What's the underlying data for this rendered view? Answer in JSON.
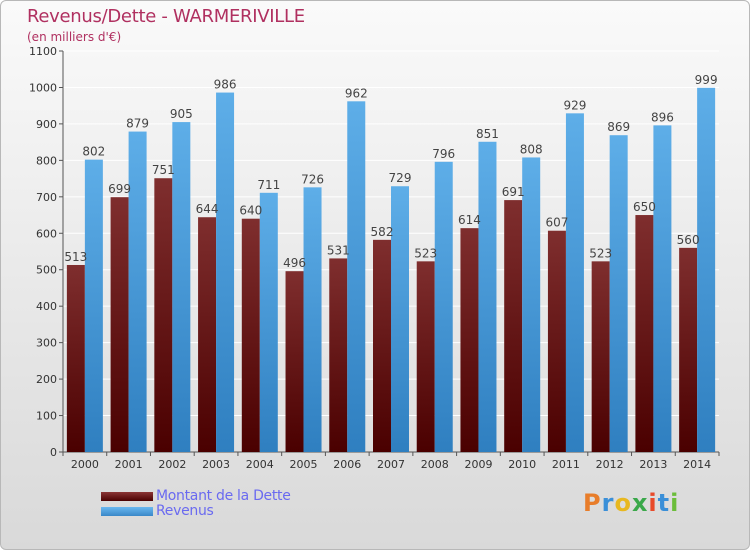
{
  "header": {
    "title": "Revenus/Dette - WARMERIVILLE",
    "subtitle": "(en milliers d'€)"
  },
  "legend": {
    "debt_label": "Montant de la Dette",
    "revenue_label": "Revenus"
  },
  "logo": {
    "text": "Proxiti",
    "letters": [
      "P",
      "r",
      "o",
      "x",
      "i",
      "t",
      "i"
    ],
    "letter_colors": [
      "#e87d2a",
      "#3a8fd8",
      "#e8b820",
      "#3aa84a",
      "#e84a2a",
      "#3a8fd8",
      "#6bbd3a"
    ]
  },
  "colors": {
    "debt": "#7a2a2a",
    "debt_dark": "#520000",
    "revenue": "#5aaae6",
    "revenue_dark": "#2a78b8",
    "title": "#b03060",
    "legend_text": "#6a6af0"
  },
  "chart_data": {
    "type": "bar",
    "title": "Revenus/Dette - WARMERIVILLE",
    "subtitle": "(en milliers d'€)",
    "xlabel": "",
    "ylabel": "",
    "ylim": [
      0,
      1100
    ],
    "yticks": [
      0,
      100,
      200,
      300,
      400,
      500,
      600,
      700,
      800,
      900,
      1000,
      1100
    ],
    "grid": true,
    "legend_position": "bottom-left",
    "categories": [
      "2000",
      "2001",
      "2002",
      "2003",
      "2004",
      "2005",
      "2006",
      "2007",
      "2008",
      "2009",
      "2010",
      "2011",
      "2012",
      "2013",
      "2014"
    ],
    "series": [
      {
        "name": "Montant de la Dette",
        "values": [
          513,
          699,
          751,
          644,
          640,
          496,
          531,
          582,
          523,
          614,
          691,
          607,
          523,
          650,
          560
        ]
      },
      {
        "name": "Revenus",
        "values": [
          802,
          879,
          905,
          986,
          711,
          726,
          962,
          729,
          796,
          851,
          808,
          929,
          869,
          896,
          999
        ]
      }
    ]
  }
}
